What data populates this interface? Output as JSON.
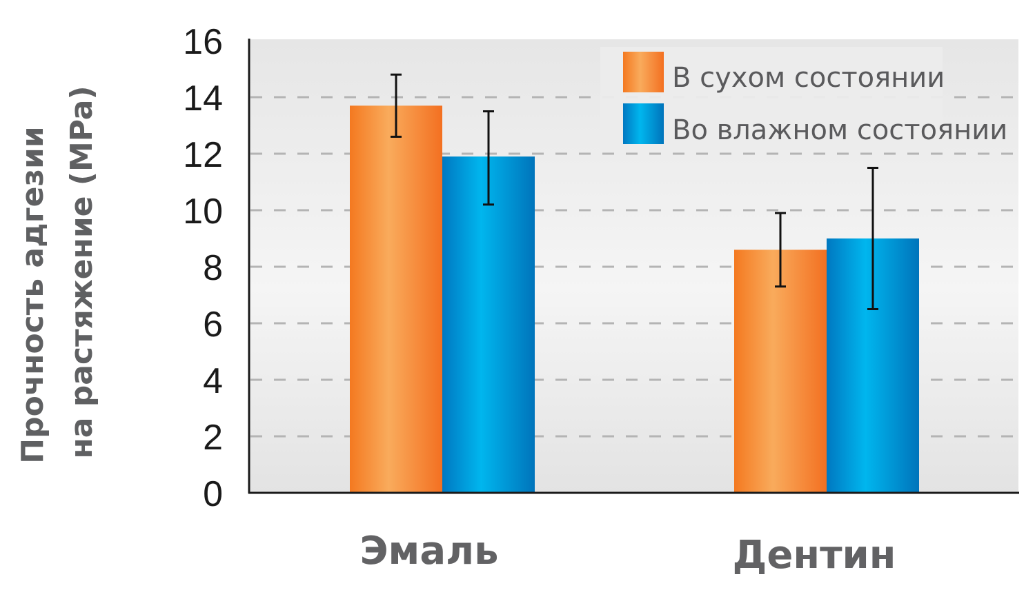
{
  "chart_data": {
    "type": "bar",
    "title": "",
    "xlabel": "",
    "ylabel": "Прочность адгезии на растяжение (MPa)",
    "ylabel_lines": [
      "Прочность адгезии",
      "на растяжение (MPa)"
    ],
    "categories": [
      "Эмаль",
      "Дентин"
    ],
    "series": [
      {
        "name": "В сухом состоянии",
        "color": "#f47920",
        "values": [
          13.7,
          8.6
        ],
        "error_low": [
          12.6,
          7.3
        ],
        "error_high": [
          14.8,
          9.9
        ]
      },
      {
        "name": "Во влажном состоянии",
        "color": "#0088d1",
        "values": [
          11.9,
          9.0
        ],
        "error_low": [
          10.2,
          6.5
        ],
        "error_high": [
          13.5,
          11.5
        ]
      }
    ],
    "ylim": [
      0,
      16
    ],
    "yticks": [
      0,
      2,
      4,
      6,
      8,
      10,
      12,
      14,
      16
    ],
    "grid": true,
    "grid_style": "dashed horizontal",
    "legend_position": "top-right",
    "error_bars": true
  },
  "colors": {
    "orange_dark": "#f47920",
    "orange_light": "#f9a95a",
    "blue_dark": "#0077c0",
    "blue_light": "#00b6ee",
    "axis": "#1a1a1a",
    "grid": "#b4b4b4",
    "label_gray": "#626264"
  }
}
